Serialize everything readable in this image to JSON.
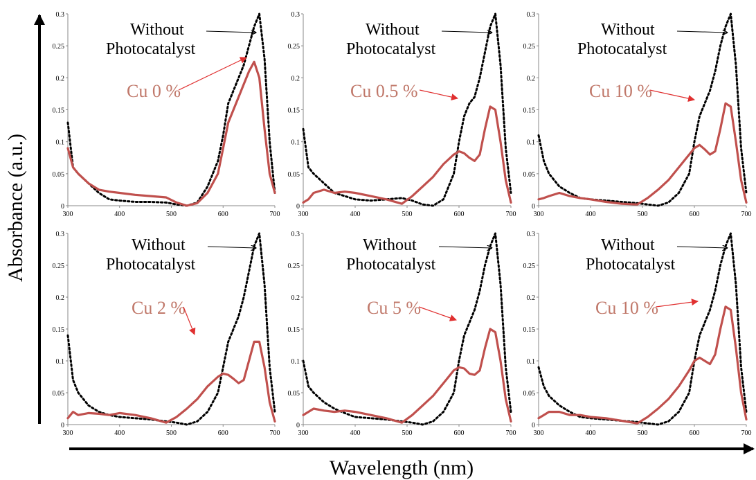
{
  "figure": {
    "y_axis_title": "Absorbance  (a.u.)",
    "x_axis_title": "Wavelength  (nm)"
  },
  "colors": {
    "without": "#000000",
    "with": "#c0504d",
    "cu_label": "#c0786a",
    "arrow_cu": "#e03030"
  },
  "chart_data": [
    {
      "type": "line",
      "xlim": [
        300,
        700
      ],
      "ylim": [
        0,
        0.3
      ],
      "xticks": [
        "300",
        "400",
        "500",
        "600",
        "700"
      ],
      "yticks": [
        "0",
        "0.05",
        "0.1",
        "0.15",
        "0.2",
        "0.25",
        "0.3"
      ],
      "annotations": [
        "Without",
        "Photocatalyst",
        "Cu 0 %"
      ],
      "series": [
        {
          "style": "dotted",
          "x": [
            300,
            310,
            320,
            340,
            360,
            380,
            400,
            430,
            460,
            490,
            510,
            530,
            550,
            570,
            590,
            600,
            610,
            620,
            630,
            640,
            650,
            660,
            670,
            680,
            690,
            700
          ],
          "y": [
            0.13,
            0.06,
            0.05,
            0.035,
            0.02,
            0.01,
            0.008,
            0.006,
            0.006,
            0.005,
            0.002,
            0,
            0.005,
            0.03,
            0.07,
            0.11,
            0.16,
            0.18,
            0.2,
            0.22,
            0.25,
            0.28,
            0.3,
            0.23,
            0.1,
            0.02
          ]
        },
        {
          "style": "solid",
          "x": [
            300,
            310,
            320,
            340,
            360,
            380,
            400,
            430,
            460,
            490,
            510,
            530,
            550,
            570,
            590,
            600,
            610,
            620,
            630,
            640,
            650,
            660,
            670,
            680,
            690,
            700
          ],
          "y": [
            0.09,
            0.06,
            0.05,
            0.035,
            0.025,
            0.022,
            0.02,
            0.017,
            0.015,
            0.013,
            0.005,
            0,
            0.004,
            0.02,
            0.05,
            0.09,
            0.13,
            0.15,
            0.17,
            0.19,
            0.21,
            0.225,
            0.2,
            0.12,
            0.05,
            0.02
          ]
        }
      ]
    },
    {
      "type": "line",
      "xlim": [
        300,
        700
      ],
      "ylim": [
        0,
        0.3
      ],
      "xticks": [
        "300",
        "400",
        "500",
        "600",
        "700"
      ],
      "yticks": [
        "0",
        "0.05",
        "0.1",
        "0.15",
        "0.2",
        "0.25",
        "0.3"
      ],
      "annotations": [
        "Without",
        "Photocatalyst",
        "Cu 0.5 %"
      ],
      "series": [
        {
          "style": "dotted",
          "x": [
            300,
            310,
            320,
            340,
            360,
            380,
            400,
            430,
            460,
            490,
            510,
            530,
            550,
            570,
            590,
            600,
            610,
            620,
            630,
            640,
            650,
            660,
            670,
            680,
            690,
            700
          ],
          "y": [
            0.12,
            0.06,
            0.05,
            0.035,
            0.02,
            0.015,
            0.01,
            0.008,
            0.01,
            0.012,
            0.008,
            0.002,
            0,
            0.01,
            0.05,
            0.1,
            0.14,
            0.16,
            0.17,
            0.2,
            0.24,
            0.28,
            0.3,
            0.22,
            0.09,
            0.02
          ]
        },
        {
          "style": "solid",
          "x": [
            300,
            310,
            320,
            340,
            360,
            380,
            400,
            430,
            460,
            490,
            510,
            530,
            550,
            570,
            590,
            600,
            610,
            620,
            630,
            640,
            650,
            660,
            670,
            680,
            690,
            700
          ],
          "y": [
            0.005,
            0.01,
            0.02,
            0.025,
            0.02,
            0.022,
            0.02,
            0.015,
            0.01,
            0.003,
            0.015,
            0.03,
            0.045,
            0.065,
            0.08,
            0.085,
            0.082,
            0.075,
            0.07,
            0.08,
            0.12,
            0.155,
            0.15,
            0.1,
            0.04,
            0.005
          ]
        }
      ]
    },
    {
      "type": "line",
      "xlim": [
        300,
        700
      ],
      "ylim": [
        0,
        0.3
      ],
      "xticks": [
        "300",
        "400",
        "500",
        "600",
        "700"
      ],
      "yticks": [
        "0",
        "0.05",
        "0.1",
        "0.15",
        "0.2",
        "0.25",
        "0.3"
      ],
      "annotations": [
        "Without",
        "Photocatalyst",
        "Cu 10 %"
      ],
      "series": [
        {
          "style": "dotted",
          "x": [
            300,
            310,
            320,
            340,
            360,
            380,
            400,
            430,
            460,
            490,
            510,
            530,
            550,
            570,
            590,
            600,
            610,
            620,
            630,
            640,
            650,
            660,
            670,
            680,
            690,
            700
          ],
          "y": [
            0.11,
            0.07,
            0.05,
            0.03,
            0.02,
            0.012,
            0.01,
            0.008,
            0.006,
            0.004,
            0.002,
            0,
            0.005,
            0.02,
            0.05,
            0.1,
            0.14,
            0.16,
            0.18,
            0.21,
            0.25,
            0.28,
            0.3,
            0.22,
            0.09,
            0.02
          ]
        },
        {
          "style": "solid",
          "x": [
            300,
            310,
            320,
            340,
            360,
            380,
            400,
            430,
            460,
            490,
            510,
            530,
            550,
            570,
            590,
            600,
            610,
            620,
            630,
            640,
            650,
            660,
            670,
            680,
            690,
            700
          ],
          "y": [
            0.01,
            0.012,
            0.015,
            0.02,
            0.015,
            0.012,
            0.01,
            0.006,
            0.003,
            0.002,
            0.012,
            0.025,
            0.04,
            0.06,
            0.08,
            0.09,
            0.095,
            0.088,
            0.08,
            0.085,
            0.12,
            0.16,
            0.155,
            0.1,
            0.04,
            0.005
          ]
        }
      ]
    },
    {
      "type": "line",
      "xlim": [
        300,
        700
      ],
      "ylim": [
        0,
        0.3
      ],
      "xticks": [
        "300",
        "400",
        "500",
        "600",
        "700"
      ],
      "yticks": [
        "0",
        "0.05",
        "0.1",
        "0.15",
        "0.2",
        "0.25",
        "0.3"
      ],
      "annotations": [
        "Without",
        "Photocatalyst",
        "Cu 2 %"
      ],
      "series": [
        {
          "style": "dotted",
          "x": [
            300,
            310,
            320,
            340,
            360,
            380,
            400,
            430,
            460,
            490,
            510,
            530,
            550,
            570,
            590,
            600,
            610,
            620,
            630,
            640,
            650,
            660,
            670,
            680,
            690,
            700
          ],
          "y": [
            0.14,
            0.07,
            0.05,
            0.03,
            0.02,
            0.015,
            0.012,
            0.01,
            0.008,
            0.005,
            0.003,
            0,
            0.005,
            0.02,
            0.05,
            0.09,
            0.13,
            0.15,
            0.17,
            0.2,
            0.24,
            0.28,
            0.3,
            0.22,
            0.09,
            0.02
          ]
        },
        {
          "style": "solid",
          "x": [
            300,
            310,
            320,
            340,
            360,
            380,
            400,
            430,
            460,
            490,
            510,
            530,
            550,
            570,
            590,
            600,
            610,
            620,
            630,
            640,
            650,
            660,
            670,
            680,
            690,
            700
          ],
          "y": [
            0.01,
            0.02,
            0.015,
            0.018,
            0.017,
            0.015,
            0.018,
            0.015,
            0.01,
            0.003,
            0.012,
            0.025,
            0.04,
            0.06,
            0.075,
            0.08,
            0.078,
            0.072,
            0.065,
            0.07,
            0.1,
            0.13,
            0.13,
            0.09,
            0.035,
            0.005
          ]
        }
      ]
    },
    {
      "type": "line",
      "xlim": [
        300,
        700
      ],
      "ylim": [
        0,
        0.3
      ],
      "xticks": [
        "300",
        "400",
        "500",
        "600",
        "700"
      ],
      "yticks": [
        "0",
        "0.05",
        "0.1",
        "0.15",
        "0.2",
        "0.25",
        "0.3"
      ],
      "annotations": [
        "Without",
        "Photocatalyst",
        "Cu 5 %"
      ],
      "series": [
        {
          "style": "dotted",
          "x": [
            300,
            310,
            320,
            340,
            360,
            380,
            400,
            430,
            460,
            490,
            510,
            530,
            550,
            570,
            590,
            600,
            610,
            620,
            630,
            640,
            650,
            660,
            670,
            680,
            690,
            700
          ],
          "y": [
            0.1,
            0.06,
            0.05,
            0.035,
            0.025,
            0.018,
            0.012,
            0.01,
            0.008,
            0.005,
            0.003,
            0,
            0.005,
            0.02,
            0.05,
            0.1,
            0.14,
            0.16,
            0.18,
            0.21,
            0.25,
            0.28,
            0.3,
            0.22,
            0.09,
            0.02
          ]
        },
        {
          "style": "solid",
          "x": [
            300,
            310,
            320,
            340,
            360,
            380,
            400,
            430,
            460,
            490,
            510,
            530,
            550,
            570,
            590,
            600,
            610,
            620,
            630,
            640,
            650,
            660,
            670,
            680,
            690,
            700
          ],
          "y": [
            0.015,
            0.02,
            0.025,
            0.022,
            0.02,
            0.022,
            0.02,
            0.015,
            0.01,
            0.003,
            0.015,
            0.03,
            0.045,
            0.065,
            0.085,
            0.09,
            0.088,
            0.08,
            0.078,
            0.085,
            0.12,
            0.15,
            0.145,
            0.1,
            0.04,
            0.005
          ]
        }
      ]
    },
    {
      "type": "line",
      "xlim": [
        300,
        700
      ],
      "ylim": [
        0,
        0.3
      ],
      "xticks": [
        "300",
        "400",
        "500",
        "600",
        "700"
      ],
      "yticks": [
        "0",
        "0.05",
        "0.1",
        "0.15",
        "0.2",
        "0.25",
        "0.3"
      ],
      "annotations": [
        "Without",
        "Photocatalyst",
        "Cu 10 %"
      ],
      "series": [
        {
          "style": "dotted",
          "x": [
            300,
            310,
            320,
            340,
            360,
            380,
            400,
            430,
            460,
            490,
            510,
            530,
            550,
            570,
            590,
            600,
            610,
            620,
            630,
            640,
            650,
            660,
            670,
            680,
            690,
            700
          ],
          "y": [
            0.09,
            0.06,
            0.045,
            0.03,
            0.02,
            0.012,
            0.01,
            0.008,
            0.006,
            0.004,
            0.002,
            0,
            0.005,
            0.02,
            0.05,
            0.1,
            0.14,
            0.16,
            0.18,
            0.21,
            0.25,
            0.28,
            0.3,
            0.22,
            0.09,
            0.02
          ]
        },
        {
          "style": "solid",
          "x": [
            300,
            310,
            320,
            340,
            360,
            380,
            400,
            430,
            460,
            490,
            510,
            530,
            550,
            570,
            590,
            600,
            610,
            620,
            630,
            640,
            650,
            660,
            670,
            680,
            690,
            700
          ],
          "y": [
            0.01,
            0.015,
            0.02,
            0.02,
            0.015,
            0.015,
            0.012,
            0.01,
            0.006,
            0.002,
            0.012,
            0.025,
            0.04,
            0.06,
            0.085,
            0.1,
            0.105,
            0.1,
            0.095,
            0.11,
            0.15,
            0.185,
            0.18,
            0.12,
            0.05,
            0.008
          ]
        }
      ]
    }
  ]
}
